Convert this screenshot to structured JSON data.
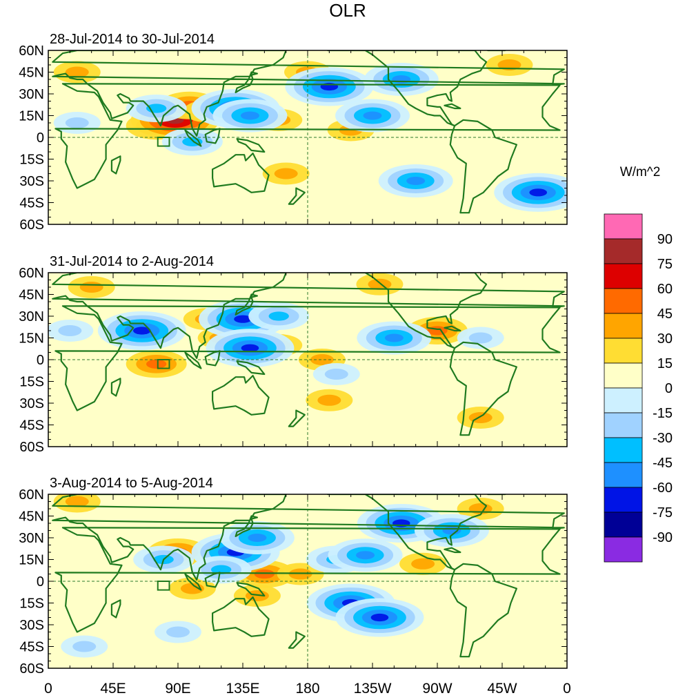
{
  "chart_data": {
    "type": "heatmap",
    "title": "OLR",
    "units_label": "W/m^2",
    "panels": [
      {
        "title": "28-Jul-2014 to 30-Jul-2014",
        "blobs": [
          {
            "lon": 75,
            "lat": 8,
            "value": 45
          },
          {
            "lon": 88,
            "lat": 12,
            "value": 75
          },
          {
            "lon": 98,
            "lat": 22,
            "value": 45
          },
          {
            "lon": 110,
            "lat": 18,
            "value": 30
          },
          {
            "lon": 20,
            "lat": 45,
            "value": 30
          },
          {
            "lon": 160,
            "lat": 12,
            "value": 30
          },
          {
            "lon": 180,
            "lat": 45,
            "value": 30
          },
          {
            "lon": 210,
            "lat": 5,
            "value": 30
          },
          {
            "lon": 320,
            "lat": 50,
            "value": 30
          },
          {
            "lon": 165,
            "lat": -25,
            "value": 30
          },
          {
            "lon": 75,
            "lat": 20,
            "value": -45
          },
          {
            "lon": 130,
            "lat": 20,
            "value": -75
          },
          {
            "lon": 140,
            "lat": 15,
            "value": -60
          },
          {
            "lon": 195,
            "lat": 35,
            "value": -75
          },
          {
            "lon": 245,
            "lat": 40,
            "value": -60
          },
          {
            "lon": 225,
            "lat": 15,
            "value": -60
          },
          {
            "lon": 255,
            "lat": -30,
            "value": -60
          },
          {
            "lon": 340,
            "lat": -38,
            "value": -75
          },
          {
            "lon": 20,
            "lat": 10,
            "value": -30
          },
          {
            "lon": 100,
            "lat": -3,
            "value": -45
          }
        ]
      },
      {
        "title": "31-Jul-2014 to 2-Aug-2014",
        "blobs": [
          {
            "lon": 160,
            "lat": 10,
            "value": 30
          },
          {
            "lon": 190,
            "lat": 0,
            "value": 30
          },
          {
            "lon": 195,
            "lat": -28,
            "value": 30
          },
          {
            "lon": 110,
            "lat": 28,
            "value": 30
          },
          {
            "lon": 120,
            "lat": 15,
            "value": 30
          },
          {
            "lon": 270,
            "lat": 20,
            "value": 45
          },
          {
            "lon": 75,
            "lat": -3,
            "value": 45
          },
          {
            "lon": 30,
            "lat": 50,
            "value": 30
          },
          {
            "lon": 230,
            "lat": 52,
            "value": 30
          },
          {
            "lon": 300,
            "lat": -40,
            "value": 30
          },
          {
            "lon": 65,
            "lat": 20,
            "value": -75
          },
          {
            "lon": 135,
            "lat": 28,
            "value": -75
          },
          {
            "lon": 140,
            "lat": 8,
            "value": -75
          },
          {
            "lon": 160,
            "lat": 30,
            "value": -45
          },
          {
            "lon": 240,
            "lat": 15,
            "value": -60
          },
          {
            "lon": 15,
            "lat": 20,
            "value": -30
          },
          {
            "lon": 200,
            "lat": -10,
            "value": -30
          },
          {
            "lon": 300,
            "lat": 15,
            "value": -30
          }
        ]
      },
      {
        "title": "3-Aug-2014 to 5-Aug-2014",
        "blobs": [
          {
            "lon": 150,
            "lat": 5,
            "value": 45
          },
          {
            "lon": 175,
            "lat": 5,
            "value": 30
          },
          {
            "lon": 90,
            "lat": 20,
            "value": 45
          },
          {
            "lon": 100,
            "lat": -5,
            "value": 30
          },
          {
            "lon": 145,
            "lat": -10,
            "value": 30
          },
          {
            "lon": 260,
            "lat": 12,
            "value": 30
          },
          {
            "lon": 20,
            "lat": 55,
            "value": 30
          },
          {
            "lon": 300,
            "lat": 50,
            "value": 30
          },
          {
            "lon": 130,
            "lat": 20,
            "value": -75
          },
          {
            "lon": 145,
            "lat": 30,
            "value": -60
          },
          {
            "lon": 120,
            "lat": 8,
            "value": -45
          },
          {
            "lon": 80,
            "lat": 15,
            "value": -45
          },
          {
            "lon": 210,
            "lat": -15,
            "value": -75
          },
          {
            "lon": 230,
            "lat": -25,
            "value": -75
          },
          {
            "lon": 245,
            "lat": 40,
            "value": -75
          },
          {
            "lon": 280,
            "lat": 35,
            "value": -60
          },
          {
            "lon": 200,
            "lat": 15,
            "value": -45
          },
          {
            "lon": 220,
            "lat": 18,
            "value": -60
          },
          {
            "lon": 25,
            "lat": -45,
            "value": -30
          },
          {
            "lon": 90,
            "lat": -35,
            "value": -30
          }
        ]
      }
    ],
    "x_ticks": [
      "0",
      "45E",
      "90E",
      "135E",
      "180",
      "135W",
      "90W",
      "45W",
      "0"
    ],
    "y_ticks": [
      "60N",
      "45N",
      "30N",
      "15N",
      "0",
      "15S",
      "30S",
      "45S",
      "60S"
    ],
    "lon_range": [
      0,
      360
    ],
    "lat_range": [
      -60,
      60
    ],
    "colorbar": {
      "labels": [
        "90",
        "75",
        "60",
        "45",
        "30",
        "15",
        "0",
        "-15",
        "-30",
        "-45",
        "-60",
        "-75",
        "-90"
      ],
      "colors": [
        "#ff69b4",
        "#a52a2a",
        "#dd0000",
        "#ff6a00",
        "#ffa500",
        "#ffdd33",
        "#ffffc8",
        "#cdf0ff",
        "#a0d2ff",
        "#00bfff",
        "#1e90ff",
        "#0014e6",
        "#000096",
        "#8a2be2"
      ]
    }
  }
}
